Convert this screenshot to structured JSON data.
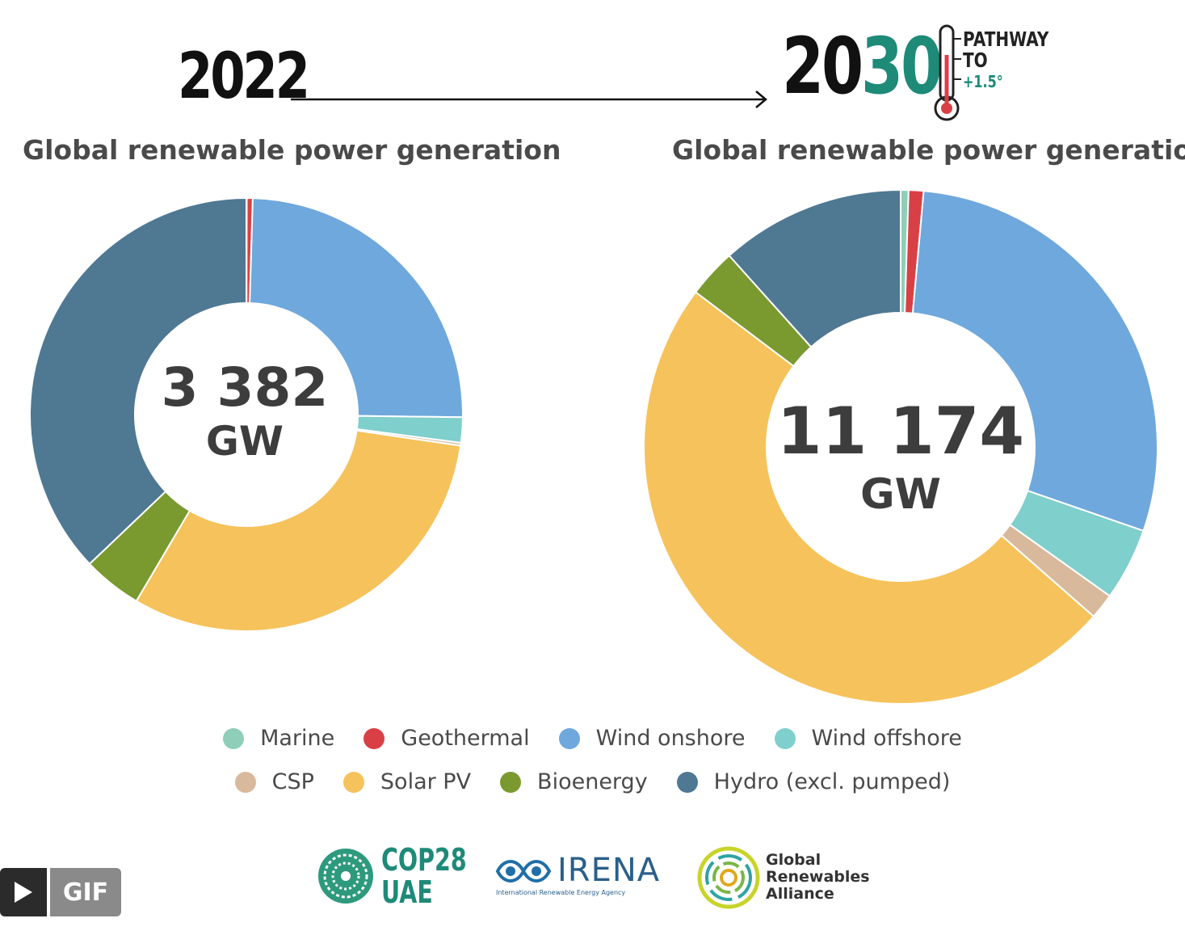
{
  "header": {
    "start_year": "2022",
    "end_year_prefix": "20",
    "end_year_accent": "30",
    "pathway_line1": "PATHWAY",
    "pathway_line2": "TO",
    "pathway_line3": "+1.5°"
  },
  "colors": {
    "marine": "#8fcfb9",
    "geothermal": "#d94045",
    "wind_onshore": "#6fa8dc",
    "wind_offshore": "#7fcfcc",
    "csp": "#d9b99b",
    "solar_pv": "#f6c25b",
    "bioenergy": "#7a9a2f",
    "hydro": "#4f7893",
    "accent": "#1e8a78"
  },
  "chart_data": [
    {
      "type": "pie",
      "variant": "donut",
      "title": "Global renewable power generation",
      "year": "2022",
      "center_value": "3 382",
      "center_unit": "GW",
      "unit": "GW",
      "categories": [
        "Marine",
        "Geothermal",
        "Wind onshore",
        "Wind offshore",
        "CSP",
        "Solar PV",
        "Bioenergy",
        "Hydro (excl. pumped)"
      ],
      "values": [
        1,
        15,
        836,
        64,
        7,
        1055,
        149,
        1255
      ]
    },
    {
      "type": "pie",
      "variant": "donut",
      "title": "Global renewable power generation",
      "year": "2030",
      "center_value": "11 174",
      "center_unit": "GW",
      "unit": "GW",
      "categories": [
        "Marine",
        "Geothermal",
        "Wind onshore",
        "Wind offshore",
        "CSP",
        "Solar PV",
        "Bioenergy",
        "Hydro (excl. pumped)"
      ],
      "values": [
        55,
        105,
        3225,
        510,
        180,
        5455,
        344,
        1300
      ]
    }
  ],
  "legend": [
    {
      "label": "Marine",
      "color_key": "marine"
    },
    {
      "label": "Geothermal",
      "color_key": "geothermal"
    },
    {
      "label": "Wind onshore",
      "color_key": "wind_onshore"
    },
    {
      "label": "Wind offshore",
      "color_key": "wind_offshore"
    },
    {
      "label": "CSP",
      "color_key": "csp"
    },
    {
      "label": "Solar PV",
      "color_key": "solar_pv"
    },
    {
      "label": "Bioenergy",
      "color_key": "bioenergy"
    },
    {
      "label": "Hydro (excl. pumped)",
      "color_key": "hydro"
    }
  ],
  "logos": {
    "cop_line1": "COP28",
    "cop_line2": "UAE",
    "irena": "IRENA",
    "irena_sub": "International Renewable Energy Agency",
    "gra_line1": "Global",
    "gra_line2": "Renewables",
    "gra_line3": "Alliance"
  },
  "gif_badge": {
    "label": "GIF"
  }
}
